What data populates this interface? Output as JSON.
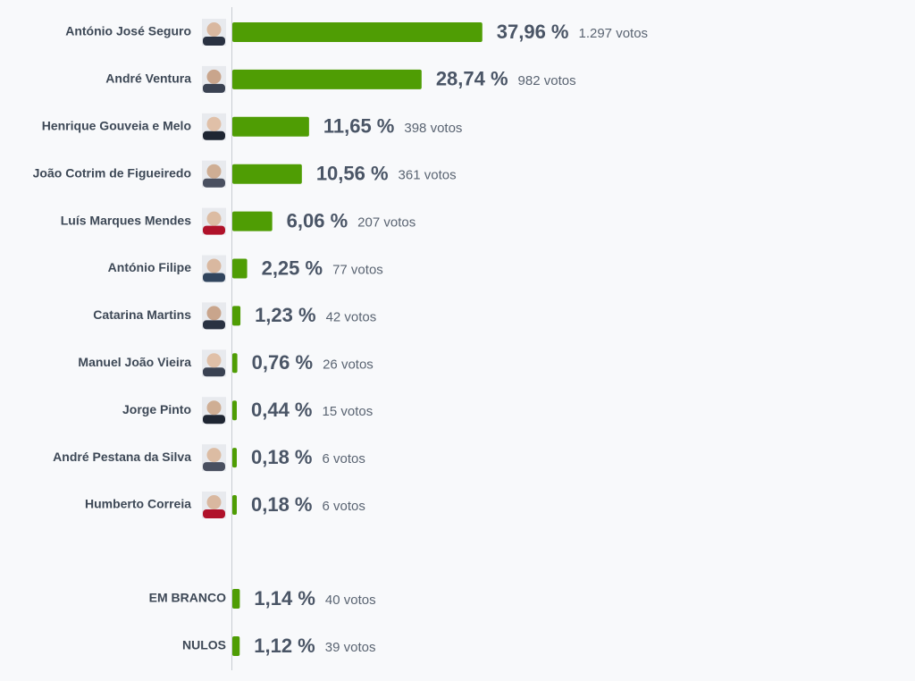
{
  "chart_data": [
    {
      "type": "bar",
      "color": "#4f9d04",
      "xlim": [
        0,
        100
      ],
      "categories": [
        "António José Seguro",
        "André Ventura",
        "Henrique Gouveia e Melo",
        "João Cotrim de Figueiredo",
        "Luís Marques Mendes",
        "António Filipe",
        "Catarina Martins",
        "Manuel João Vieira",
        "Jorge Pinto",
        "André Pestana da Silva",
        "Humberto Correia"
      ],
      "values": [
        37.96,
        28.74,
        11.65,
        10.56,
        6.06,
        2.25,
        1.23,
        0.76,
        0.44,
        0.18,
        0.18
      ],
      "value_labels": [
        "37,96 %",
        "28,74 %",
        "11,65 %",
        "10,56 %",
        "6,06 %",
        "2,25 %",
        "1,23 %",
        "0,76 %",
        "0,44 %",
        "0,18 %",
        "0,18 %"
      ],
      "votes": [
        1297,
        982,
        398,
        361,
        207,
        77,
        42,
        26,
        15,
        6,
        6
      ],
      "votes_labels": [
        "1.297 votos",
        "982 votos",
        "398 votos",
        "361 votos",
        "207 votos",
        "77 votos",
        "42 votos",
        "26 votos",
        "15 votos",
        "6 votos",
        "6 votos"
      ]
    },
    {
      "type": "bar",
      "color": "#4f9d04",
      "xlim": [
        0,
        100
      ],
      "categories": [
        "EM BRANCO",
        "NULOS"
      ],
      "values": [
        1.14,
        1.12
      ],
      "value_labels": [
        "1,14 %",
        "1,12 %"
      ],
      "votes": [
        40,
        39
      ],
      "votes_labels": [
        "40 votos",
        "39 votos"
      ]
    }
  ]
}
